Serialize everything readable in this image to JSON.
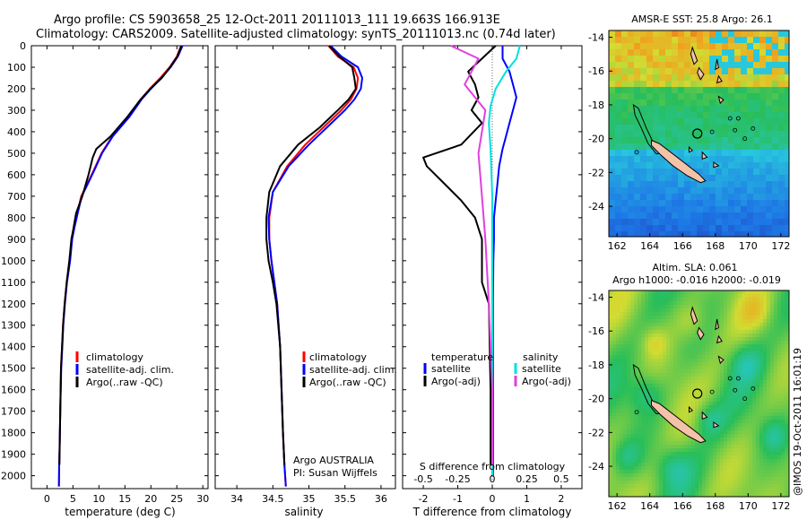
{
  "figure": {
    "title_line1": "Argo profile: CS 5903658_25 12-Oct-2011 20111013_111 19.663S 166.913E",
    "title_line2": "Climatology: CARS2009. Satellite-adjusted climatology: synTS_20111013.nc (0.74d later)",
    "footer": "@IMOS 19-Oct-2011 16:01:19",
    "institution": "Argo AUSTRALIA",
    "pi": "PI: Susan Wijffels"
  },
  "colors": {
    "climatology": "#ff0000",
    "satellite": "#0000ff",
    "argo": "#000000",
    "salinity_satellite": "#00e0e0",
    "salinity_argo": "#e040e0",
    "coast": "#000000",
    "land": "#f4c2a8"
  },
  "legend": {
    "climatology": "climatology",
    "satellite_adj": "satellite-adj. clim.",
    "argo_raw": "Argo(..raw -QC)",
    "temperature_heading": "temperature",
    "salinity_heading": "salinity",
    "satellite": "satellite",
    "argo_adj": "Argo(-adj)"
  },
  "chart_data": [
    {
      "id": "temperature",
      "type": "line",
      "xlabel": "temperature (deg C)",
      "ylabel": "",
      "xlim": [
        -3,
        31
      ],
      "ylim": [
        2060,
        0
      ],
      "xticks": [
        0,
        5,
        10,
        15,
        20,
        25,
        30
      ],
      "yticks": [
        0,
        100,
        200,
        300,
        400,
        500,
        600,
        700,
        800,
        900,
        1000,
        1100,
        1200,
        1300,
        1400,
        1500,
        1600,
        1700,
        1800,
        1900,
        2000
      ],
      "series": [
        {
          "name": "climatology",
          "color_key": "climatology",
          "x": [
            25.8,
            25.0,
            23.6,
            21.8,
            19.8,
            18.0,
            15.8,
            12.6,
            10.5,
            9.0,
            7.6,
            6.6,
            5.8,
            5.2,
            4.8,
            4.4,
            3.8,
            3.4,
            3.1,
            2.9,
            2.7,
            2.55,
            2.45,
            2.35,
            2.3
          ],
          "y": [
            0,
            50,
            100,
            150,
            200,
            250,
            330,
            420,
            500,
            580,
            650,
            700,
            780,
            850,
            900,
            1000,
            1100,
            1200,
            1300,
            1400,
            1500,
            1700,
            1850,
            1950,
            2050
          ]
        },
        {
          "name": "satellite-adj. clim.",
          "color_key": "satellite",
          "x": [
            26.1,
            25.2,
            23.8,
            22.0,
            20.0,
            18.2,
            15.9,
            12.7,
            10.6,
            9.1,
            7.7,
            6.7,
            5.9,
            5.25,
            4.85,
            4.45,
            3.85,
            3.45,
            3.15,
            2.95,
            2.75,
            2.55,
            2.45,
            2.35,
            2.3
          ],
          "y": [
            0,
            50,
            100,
            150,
            200,
            250,
            330,
            420,
            500,
            580,
            650,
            700,
            780,
            850,
            900,
            1000,
            1100,
            1200,
            1300,
            1400,
            1500,
            1700,
            1850,
            1950,
            2050
          ]
        },
        {
          "name": "Argo(..raw -QC)",
          "color_key": "argo",
          "x": [
            25.9,
            25.1,
            23.7,
            22.1,
            19.9,
            18.0,
            15.5,
            12.3,
            9.5,
            8.8,
            8.0,
            6.8,
            5.6,
            5.1,
            4.7,
            4.3,
            3.8,
            3.4,
            3.1,
            2.9,
            2.7,
            2.55,
            2.45,
            2.4
          ],
          "y": [
            0,
            50,
            100,
            150,
            200,
            250,
            330,
            420,
            480,
            520,
            600,
            700,
            780,
            850,
            900,
            1000,
            1100,
            1200,
            1300,
            1400,
            1500,
            1700,
            1850,
            1950
          ]
        }
      ]
    },
    {
      "id": "salinity",
      "type": "line",
      "xlabel": "salinity",
      "ylabel": "",
      "xlim": [
        33.7,
        36.2
      ],
      "ylim": [
        2060,
        0
      ],
      "xticks": [
        34,
        34.5,
        35,
        35.5,
        36
      ],
      "series": [
        {
          "name": "climatology",
          "color_key": "climatology",
          "x": [
            35.27,
            35.4,
            35.62,
            35.68,
            35.66,
            35.58,
            35.45,
            35.2,
            34.95,
            34.7,
            34.5,
            34.45,
            34.45,
            34.48,
            34.52,
            34.56,
            34.6,
            34.62,
            34.64,
            34.66,
            34.68
          ],
          "y": [
            0,
            50,
            100,
            150,
            200,
            250,
            300,
            380,
            460,
            560,
            680,
            800,
            900,
            1000,
            1100,
            1200,
            1400,
            1600,
            1800,
            1950,
            2050
          ]
        },
        {
          "name": "satellite-adj. clim.",
          "color_key": "satellite",
          "x": [
            35.3,
            35.45,
            35.68,
            35.74,
            35.72,
            35.63,
            35.5,
            35.25,
            35.0,
            34.72,
            34.5,
            34.44,
            34.45,
            34.48,
            34.52,
            34.56,
            34.6,
            34.62,
            34.64,
            34.66,
            34.68
          ],
          "y": [
            0,
            50,
            100,
            150,
            200,
            250,
            300,
            380,
            460,
            560,
            680,
            800,
            900,
            1000,
            1100,
            1200,
            1400,
            1600,
            1800,
            1950,
            2050
          ]
        },
        {
          "name": "Argo(..raw -QC)",
          "color_key": "argo",
          "x": [
            35.28,
            35.42,
            35.6,
            35.63,
            35.65,
            35.55,
            35.4,
            35.15,
            34.85,
            34.6,
            34.45,
            34.41,
            34.41,
            34.44,
            34.5,
            34.55,
            34.6,
            34.62,
            34.64,
            34.66
          ],
          "y": [
            0,
            50,
            100,
            150,
            200,
            250,
            300,
            380,
            460,
            560,
            680,
            800,
            900,
            1000,
            1100,
            1200,
            1400,
            1600,
            1800,
            1950
          ]
        }
      ]
    },
    {
      "id": "difference",
      "type": "line",
      "xlabel": "T difference from climatology",
      "xlabel_top": "S difference from climatology",
      "ylabel": "",
      "xlim": [
        -2.6,
        2.6
      ],
      "ylim": [
        2060,
        0
      ],
      "xticks": [
        -2,
        -1,
        0,
        1,
        2
      ],
      "xticks_salinity": [
        -0.5,
        -0.25,
        0,
        0.25,
        0.5
      ],
      "salinity_scale_factor": 4,
      "series": [
        {
          "name": "temperature satellite",
          "color_key": "satellite",
          "x": [
            0.3,
            0.3,
            0.5,
            0.6,
            0.7,
            0.6,
            0.5,
            0.4,
            0.3,
            0.2,
            0.15,
            0.1,
            0.05,
            0.05,
            0.03,
            0.02,
            0.02,
            0.02
          ],
          "y": [
            0,
            60,
            120,
            180,
            240,
            300,
            360,
            420,
            480,
            560,
            640,
            720,
            800,
            900,
            1000,
            1200,
            1600,
            2000
          ]
        },
        {
          "name": "temperature Argo(-adj)",
          "color_key": "argo",
          "x": [
            0.1,
            -0.3,
            -0.7,
            -0.5,
            -0.4,
            -0.6,
            -0.3,
            -0.9,
            -2.0,
            -1.9,
            -1.4,
            -0.9,
            -0.5,
            -0.3,
            -0.3,
            -0.1,
            -0.05,
            -0.05
          ],
          "y": [
            0,
            60,
            120,
            180,
            240,
            300,
            360,
            460,
            520,
            560,
            640,
            720,
            800,
            900,
            1100,
            1200,
            1600,
            1950
          ]
        },
        {
          "name": "salinity satellite",
          "color_key": "salinity_satellite",
          "x": [
            0.8,
            0.7,
            0.4,
            0.1,
            -0.05,
            -0.1,
            -0.05,
            0.0,
            0.0,
            0.0,
            0.0
          ],
          "y": [
            0,
            60,
            120,
            200,
            280,
            360,
            480,
            700,
            1000,
            1500,
            2000
          ]
        },
        {
          "name": "salinity Argo(-adj)",
          "color_key": "salinity_argo",
          "x": [
            -1.2,
            -0.4,
            -0.8,
            -0.2,
            -0.3,
            -0.4,
            -0.3,
            -0.2,
            -0.1,
            0.0,
            0.0
          ],
          "y": [
            0,
            60,
            180,
            300,
            400,
            500,
            700,
            900,
            1200,
            1600,
            1950
          ]
        }
      ]
    },
    {
      "id": "sst_map",
      "type": "heatmap",
      "title": "AMSR-E SST: 25.8  Argo: 26.1",
      "xticks": [
        162,
        164,
        166,
        168,
        170,
        172
      ],
      "yticks": [
        -14,
        -16,
        -18,
        -20,
        -22,
        -24
      ],
      "xlim": [
        161.5,
        172.5
      ],
      "ylim": [
        -25.8,
        -13.6
      ],
      "float_position": [
        166.9,
        -19.7
      ]
    },
    {
      "id": "sla_map",
      "type": "heatmap",
      "title": "Altim. SLA: 0.061",
      "subtitle": "Argo h1000: -0.016 h2000: -0.019",
      "xticks": [
        162,
        164,
        166,
        168,
        170,
        172
      ],
      "yticks": [
        -14,
        -16,
        -18,
        -20,
        -22,
        -24
      ],
      "xlim": [
        161.5,
        172.5
      ],
      "ylim": [
        -25.8,
        -13.6
      ],
      "float_position": [
        166.9,
        -19.7
      ]
    }
  ]
}
